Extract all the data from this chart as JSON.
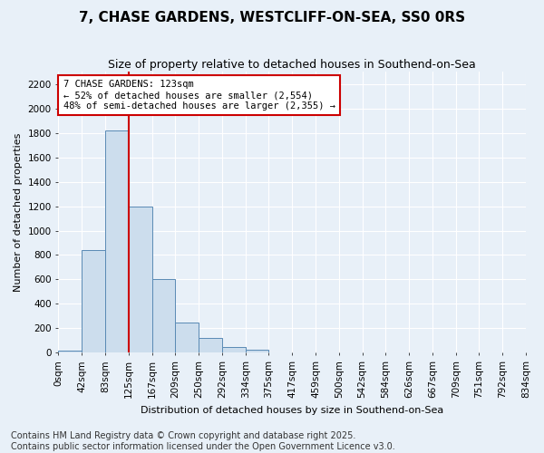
{
  "title": "7, CHASE GARDENS, WESTCLIFF-ON-SEA, SS0 0RS",
  "subtitle": "Size of property relative to detached houses in Southend-on-Sea",
  "xlabel": "Distribution of detached houses by size in Southend-on-Sea",
  "ylabel": "Number of detached properties",
  "bar_values": [
    20,
    840,
    1820,
    1200,
    600,
    250,
    120,
    50,
    25,
    5,
    2,
    1,
    0,
    0,
    0,
    0,
    0,
    0,
    0,
    0
  ],
  "bar_labels": [
    "0sqm",
    "42sqm",
    "83sqm",
    "125sqm",
    "167sqm",
    "209sqm",
    "250sqm",
    "292sqm",
    "334sqm",
    "375sqm",
    "417sqm",
    "459sqm",
    "500sqm",
    "542sqm",
    "584sqm",
    "626sqm",
    "667sqm",
    "709sqm",
    "751sqm",
    "792sqm",
    "834sqm"
  ],
  "bar_color": "#ccdded",
  "bar_edge_color": "#5a8ab5",
  "annotation_line1": "7 CHASE GARDENS: 123sqm",
  "annotation_line2": "← 52% of detached houses are smaller (2,554)",
  "annotation_line3": "48% of semi-detached houses are larger (2,355) →",
  "annotation_box_facecolor": "#ffffff",
  "annotation_box_edgecolor": "#cc0000",
  "vline_color": "#cc0000",
  "vline_x": 2.5,
  "ylim": [
    0,
    2300
  ],
  "yticks": [
    0,
    200,
    400,
    600,
    800,
    1000,
    1200,
    1400,
    1600,
    1800,
    2000,
    2200
  ],
  "footnote": "Contains HM Land Registry data © Crown copyright and database right 2025.\nContains public sector information licensed under the Open Government Licence v3.0.",
  "bg_color": "#e8f0f8",
  "grid_color": "#ffffff",
  "title_fontsize": 11,
  "subtitle_fontsize": 9,
  "axis_label_fontsize": 8,
  "tick_fontsize": 7.5,
  "footnote_fontsize": 7
}
